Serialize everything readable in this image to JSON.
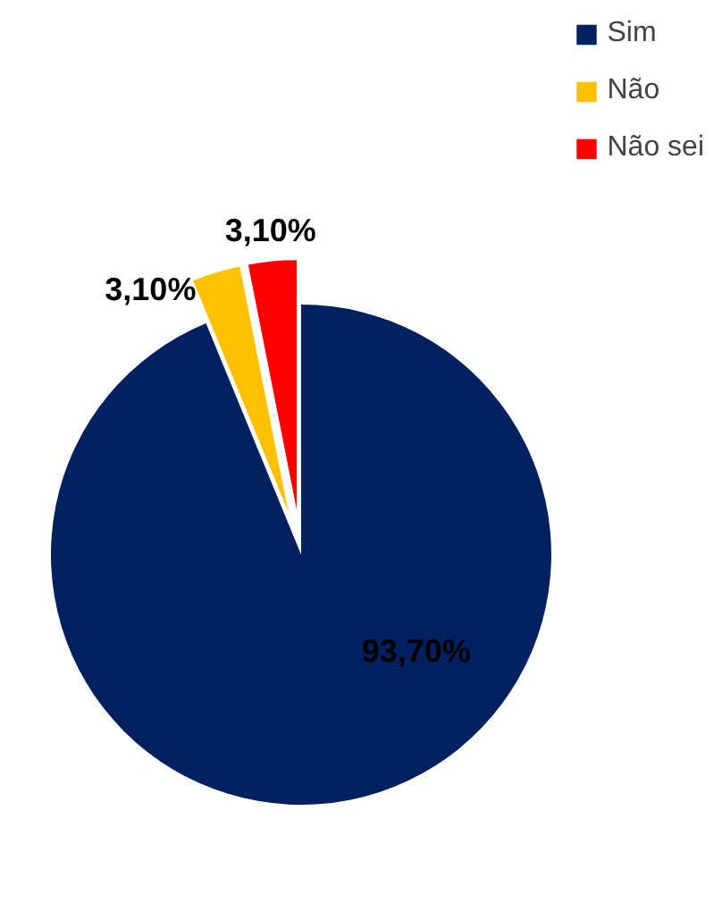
{
  "chart_data": {
    "type": "pie",
    "categories": [
      "Sim",
      "Não",
      "Não sei"
    ],
    "values": [
      93.7,
      3.1,
      3.1
    ],
    "colors": [
      "#002060",
      "#ffc000",
      "#ff0000"
    ],
    "value_labels": [
      "93,70%",
      "3,10%",
      "3,10%"
    ],
    "legend": "top right"
  }
}
